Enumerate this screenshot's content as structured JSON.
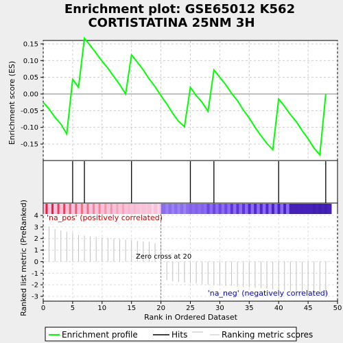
{
  "title_line1": "Enrichment plot: GSE65012 K562",
  "title_line2": "CORTISTATINA 25NM 3H",
  "colors": {
    "es_line": "#00ff00",
    "hits": "#000000",
    "metric": "#c0c0c0",
    "pos_label": "#cc0000",
    "neg_label": "#0000cc"
  },
  "chart_data": [
    {
      "type": "line",
      "panel": "enrichment-score",
      "ylabel": "Enrichment score (ES)",
      "xlim": [
        0,
        50
      ],
      "ylim": [
        -0.2,
        0.2
      ],
      "yticks": [
        "0.15",
        "0.10",
        "0.05",
        "0.00",
        "-0.05",
        "-0.10",
        "-0.15"
      ],
      "series": [
        {
          "name": "Enrichment profile",
          "x": [
            0,
            1,
            2,
            3,
            4,
            5,
            6,
            7,
            8,
            9,
            10,
            11,
            12,
            13,
            14,
            15,
            16,
            17,
            18,
            19,
            20,
            21,
            22,
            23,
            24,
            25,
            26,
            27,
            28,
            29,
            30,
            31,
            32,
            33,
            34,
            35,
            36,
            37,
            38,
            39,
            40,
            41,
            42,
            43,
            44,
            45,
            46,
            47,
            48
          ],
          "y": [
            -0.025,
            -0.045,
            -0.07,
            -0.09,
            -0.12,
            0.044,
            0.02,
            0.167,
            0.145,
            0.122,
            0.098,
            0.077,
            0.052,
            0.028,
            0.0,
            0.117,
            0.095,
            0.072,
            0.045,
            0.022,
            -0.005,
            -0.03,
            -0.058,
            -0.082,
            -0.098,
            0.02,
            -0.005,
            -0.025,
            -0.052,
            0.072,
            0.05,
            0.028,
            0.002,
            -0.02,
            -0.048,
            -0.072,
            -0.1,
            -0.125,
            -0.148,
            -0.167,
            -0.015,
            -0.037,
            -0.062,
            -0.083,
            -0.11,
            -0.134,
            -0.162,
            -0.182,
            0.0
          ]
        }
      ]
    },
    {
      "type": "hits",
      "panel": "hits",
      "name": "Hits",
      "x": [
        5,
        7,
        15,
        25,
        29,
        40,
        48
      ]
    },
    {
      "type": "bar",
      "panel": "ranked-metric",
      "name": "Ranking metric scores",
      "ylabel": "Ranked list metric (PreRanked)",
      "xlabel": "Rank in Ordered Dataset",
      "xlim": [
        0,
        50
      ],
      "ylim": [
        -3.2,
        4.5
      ],
      "xticks": [
        "0",
        "5",
        "10",
        "15",
        "20",
        "25",
        "30",
        "35",
        "40",
        "45",
        "50"
      ],
      "yticks": [
        "4",
        "3",
        "2",
        "1",
        "0",
        "-1",
        "-2",
        "-3"
      ],
      "x": [
        1,
        2,
        3,
        4,
        5,
        6,
        7,
        8,
        9,
        10,
        11,
        12,
        13,
        14,
        15,
        16,
        17,
        18,
        19,
        20,
        21,
        22,
        23,
        24,
        25,
        26,
        27,
        28,
        29,
        30,
        31,
        32,
        33,
        34,
        35,
        36,
        37,
        38,
        39,
        40,
        41,
        42,
        43,
        44,
        45,
        46,
        47,
        48
      ],
      "values": [
        3.0,
        2.8,
        2.7,
        2.6,
        2.5,
        2.3,
        2.25,
        2.2,
        2.15,
        2.1,
        2.05,
        2.0,
        1.95,
        1.9,
        1.85,
        1.8,
        1.75,
        1.7,
        1.6,
        1.5,
        -1.6,
        -1.7,
        -1.75,
        -1.8,
        -1.85,
        -1.9,
        -1.95,
        -2.0,
        -2.0,
        -2.05,
        -2.1,
        -2.1,
        -2.15,
        -2.2,
        -2.2,
        -2.25,
        -2.3,
        -2.35,
        -2.4,
        -2.45,
        -2.5,
        -2.55,
        -2.6,
        -2.65,
        -2.7,
        -2.75,
        -2.8,
        -2.85
      ],
      "zero_cross_rank": 20,
      "annotations": {
        "pos": "'na_pos' (positively correlated)",
        "neg": "'na_neg' (negatively correlated)",
        "zero": "Zero cross at 20"
      }
    }
  ],
  "heatmap_strip": {
    "pos_cells": [
      "#e8203a",
      "#ec3d52",
      "#f05a6b",
      "#f36f7e",
      "#f58292",
      "#f794a3",
      "#f8a6b4",
      "#f9b8c4",
      "#fbc8d3",
      "#fcd7df"
    ],
    "neg_cells": [
      "#3a1fb0",
      "#4220bc",
      "#4b22c8",
      "#5525d2",
      "#6131db",
      "#6e44e3",
      "#8160ea",
      "#9a82f0"
    ]
  },
  "legend": [
    {
      "label": "Enrichment profile"
    },
    {
      "label": "Hits"
    },
    {
      "label": "Ranking metric scores"
    }
  ]
}
